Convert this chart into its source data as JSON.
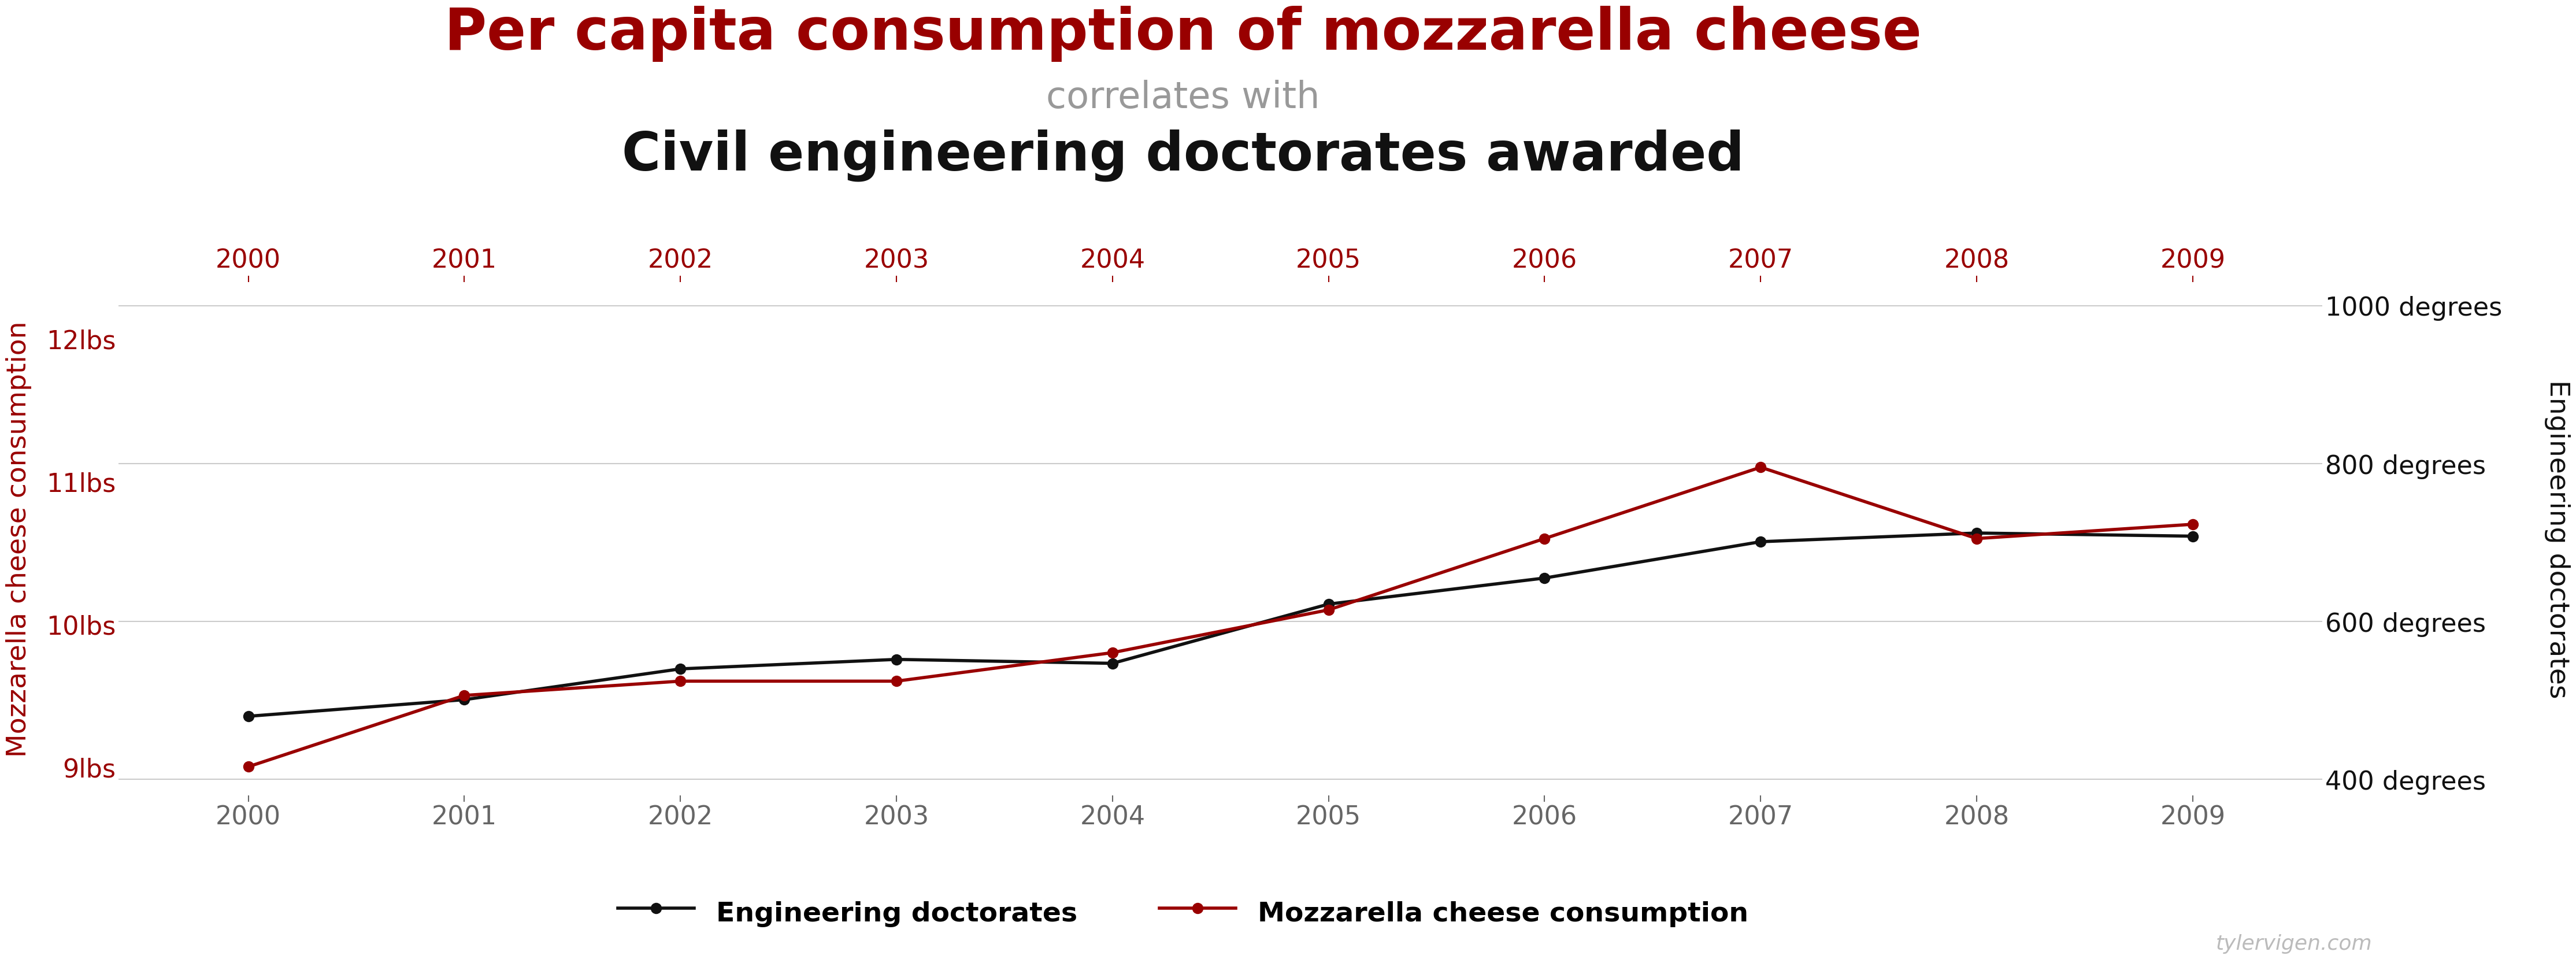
{
  "title_line1": "Per capita consumption of mozzarella cheese",
  "title_line2": "correlates with",
  "title_line3": "Civil engineering doctorates awarded",
  "title_color": "#990000",
  "subtitle_color": "#999999",
  "title3_color": "#111111",
  "years": [
    2000,
    2001,
    2002,
    2003,
    2004,
    2005,
    2006,
    2007,
    2008,
    2009
  ],
  "mozzarella": [
    9.0,
    9.5,
    9.6,
    9.6,
    9.8,
    10.1,
    10.6,
    11.1,
    10.6,
    10.7
  ],
  "doctorates": [
    480,
    501,
    540,
    552,
    547,
    622,
    655,
    701,
    712,
    708
  ],
  "left_ylabel": "Mozzarella cheese consumption",
  "right_ylabel": "Engineering doctorates",
  "left_color": "#990000",
  "right_color": "#111111",
  "line_colors": {
    "doctorates": "#111111",
    "mozzarella": "#990000"
  },
  "ylim_left": [
    8.8,
    12.4
  ],
  "ylim_right": [
    380,
    1030
  ],
  "yticks_left": [
    9,
    10,
    11,
    12
  ],
  "ytick_labels_left": [
    "9lbs",
    "10lbs",
    "11lbs",
    "12lbs"
  ],
  "yticks_right": [
    400,
    600,
    800,
    1000
  ],
  "ytick_labels_right": [
    "400 degrees",
    "600 degrees",
    "800 degrees",
    "1000 degrees"
  ],
  "legend_labels": [
    "Engineering doctorates",
    "Mozzarella cheese consumption"
  ],
  "watermark": "tylervigen.com",
  "background_color": "#ffffff",
  "grid_color": "#cccccc"
}
